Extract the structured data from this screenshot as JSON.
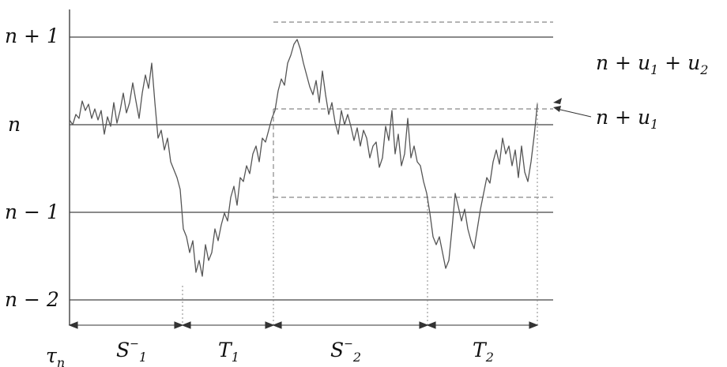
{
  "diagram": {
    "y_labels": {
      "n_plus_1": "n + 1",
      "n": "n",
      "n_minus_1": "n − 1",
      "n_minus_2": "n − 2"
    },
    "annotations": {
      "n_u1_u2": "n + u1 + u2",
      "n_u1": "n + u1"
    },
    "interval_labels": {
      "tau": "τn",
      "S1": "S1−",
      "T1": "T1",
      "S2": "S2−",
      "T2": "T2"
    },
    "colors": {
      "axis": "#333333",
      "level_line": "#444444",
      "dashed_line": "#888888",
      "path": "#555555"
    }
  }
}
